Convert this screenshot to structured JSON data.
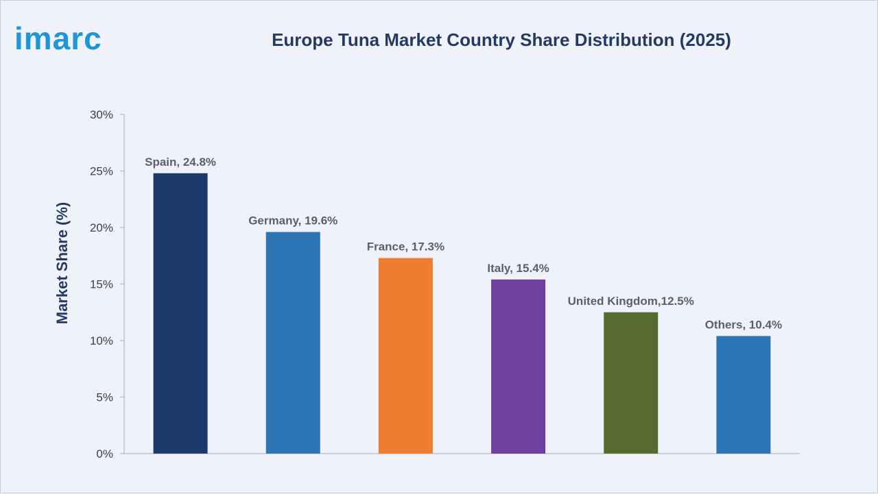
{
  "brand": {
    "logo_text": "imarc"
  },
  "chart_data": {
    "type": "bar",
    "title": "Europe Tuna Market Country Share Distribution (2025)",
    "xlabel": "",
    "ylabel": "Market Share (%)",
    "ylim": [
      0,
      30
    ],
    "yticks": [
      0,
      5,
      10,
      15,
      20,
      25,
      30
    ],
    "ytick_labels": [
      "0%",
      "5%",
      "10%",
      "15%",
      "20%",
      "25%",
      "30%"
    ],
    "grid": false,
    "categories": [
      "Spain",
      "Germany",
      "France",
      "Italy",
      "United Kingdom",
      "Others"
    ],
    "values": [
      24.8,
      19.6,
      17.3,
      15.4,
      12.5,
      10.4
    ],
    "data_labels": [
      "Spain, 24.8%",
      "Germany, 19.6%",
      "France, 17.3%",
      "Italy, 15.4%",
      "United Kingdom,12.5%",
      "Others, 10.4%"
    ],
    "colors": [
      "#1c3a6b",
      "#2e75b6",
      "#ed7d31",
      "#7040a0",
      "#556b2f",
      "#2e75b6"
    ]
  }
}
